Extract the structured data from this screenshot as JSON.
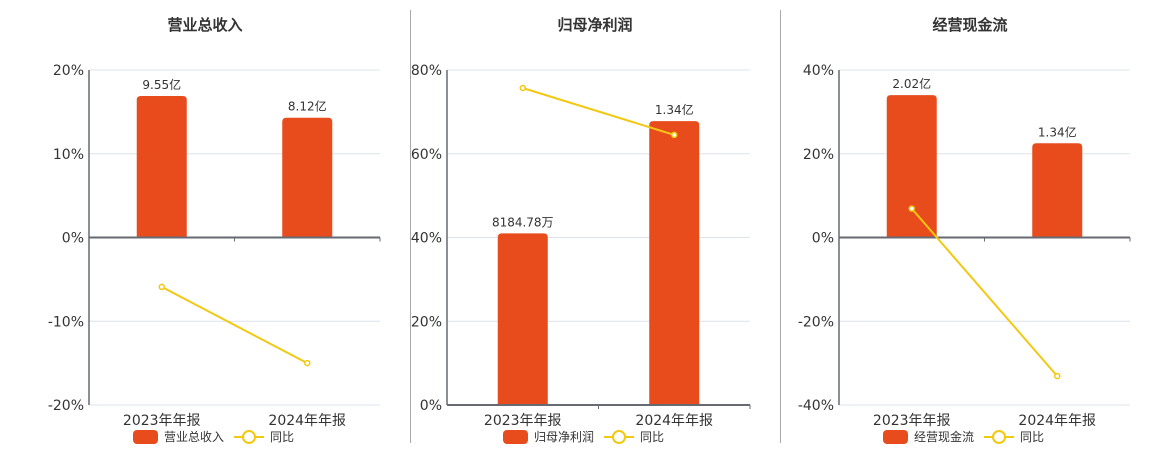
{
  "colors": {
    "bar": "#e84c1d",
    "line": "#f2c811",
    "grid": "#dde3ec",
    "axis": "#666a72",
    "text": "#333333"
  },
  "legend": {
    "line_label": "同比"
  },
  "chart_data": [
    {
      "type": "bar+line",
      "title": "营业总收入",
      "categories": [
        "2023年年报",
        "2024年年报"
      ],
      "bar_series": {
        "name": "营业总收入",
        "values": [
          9.55,
          8.12
        ],
        "unit": "亿",
        "labels": [
          "9.55亿",
          "8.12亿"
        ],
        "display_pct": [
          16.9,
          14.3
        ]
      },
      "line_series": {
        "name": "同比",
        "values": [
          -5.9,
          -15.0
        ],
        "unit": "%"
      },
      "y_ticks": [
        "20%",
        "10%",
        "0%",
        "-10%",
        "-20%"
      ],
      "ylim": [
        -20,
        20
      ],
      "grid": true,
      "legend_position": "bottom"
    },
    {
      "type": "bar+line",
      "title": "归母净利润",
      "categories": [
        "2023年年报",
        "2024年年报"
      ],
      "bar_series": {
        "name": "归母净利润",
        "values": [
          0.818478,
          1.34
        ],
        "unit": "亿",
        "labels": [
          "8184.78万",
          "1.34亿"
        ],
        "display_pct": [
          41.0,
          67.8
        ]
      },
      "line_series": {
        "name": "同比",
        "values": [
          75.7,
          64.5
        ],
        "unit": "%"
      },
      "y_ticks": [
        "80%",
        "60%",
        "40%",
        "20%",
        "0%"
      ],
      "ylim": [
        0,
        80
      ],
      "grid": true,
      "legend_position": "bottom"
    },
    {
      "type": "bar+line",
      "title": "经营现金流",
      "categories": [
        "2023年年报",
        "2024年年报"
      ],
      "bar_series": {
        "name": "经营现金流",
        "values": [
          2.02,
          1.34
        ],
        "unit": "亿",
        "labels": [
          "2.02亿",
          "1.34亿"
        ],
        "display_pct": [
          34.0,
          22.5
        ]
      },
      "line_series": {
        "name": "同比",
        "values": [
          6.9,
          -33.1
        ],
        "unit": "%"
      },
      "y_ticks": [
        "40%",
        "20%",
        "0%",
        "-20%",
        "-40%"
      ],
      "ylim": [
        -40,
        40
      ],
      "grid": true,
      "legend_position": "bottom"
    }
  ]
}
